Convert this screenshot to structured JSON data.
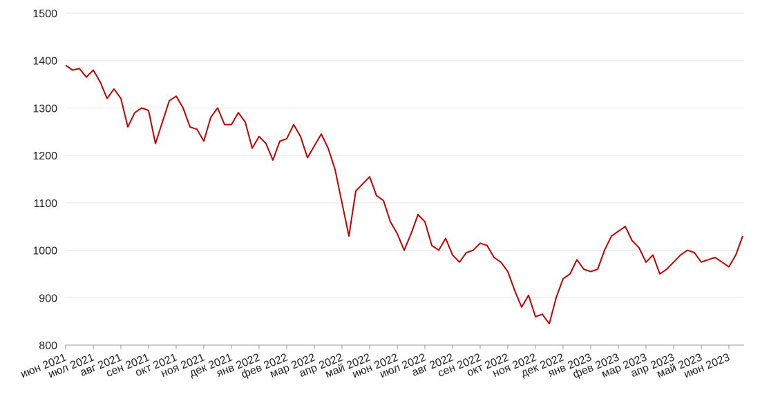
{
  "chart_data": {
    "type": "line",
    "color": "#c00000",
    "grid": true,
    "categories": [
      "июн 2021",
      null,
      null,
      null,
      "июл 2021",
      null,
      null,
      null,
      "авг 2021",
      null,
      null,
      null,
      "сен 2021",
      null,
      null,
      null,
      "окт 2021",
      null,
      null,
      null,
      "ноя 2021",
      null,
      null,
      null,
      "дек 2021",
      null,
      null,
      null,
      "янв 2022",
      null,
      null,
      null,
      "фев 2022",
      null,
      null,
      null,
      "мар 2022",
      null,
      null,
      null,
      "апр 2022",
      null,
      null,
      null,
      "май 2022",
      null,
      null,
      null,
      "июн 2022",
      null,
      null,
      null,
      "июл 2022",
      null,
      null,
      null,
      "авг 2022",
      null,
      null,
      null,
      "сен 2022",
      null,
      null,
      null,
      "окт 2022",
      null,
      null,
      null,
      "ноя 2022",
      null,
      null,
      null,
      "дек 2022",
      null,
      null,
      null,
      "янв 2023",
      null,
      null,
      null,
      "фев 2023",
      null,
      null,
      null,
      "мар 2023",
      null,
      null,
      null,
      "апр 2023",
      null,
      null,
      null,
      "май 2023",
      null,
      null,
      null,
      "июн 2023",
      null,
      null
    ],
    "values": [
      1390,
      1380,
      1383,
      1365,
      1380,
      1355,
      1320,
      1340,
      1320,
      1260,
      1290,
      1300,
      1295,
      1225,
      1270,
      1315,
      1325,
      1300,
      1260,
      1255,
      1230,
      1280,
      1300,
      1265,
      1265,
      1290,
      1270,
      1215,
      1240,
      1225,
      1190,
      1230,
      1235,
      1265,
      1240,
      1195,
      1220,
      1245,
      1215,
      1170,
      1100,
      1030,
      1125,
      1140,
      1155,
      1115,
      1105,
      1060,
      1035,
      1000,
      1035,
      1075,
      1060,
      1010,
      1000,
      1025,
      990,
      975,
      995,
      1000,
      1015,
      1010,
      985,
      975,
      955,
      915,
      880,
      905,
      860,
      865,
      845,
      900,
      940,
      950,
      980,
      960,
      955,
      960,
      1000,
      1030,
      1040,
      1050,
      1020,
      1005,
      975,
      990,
      950,
      960,
      975,
      990,
      1000,
      995,
      975,
      980,
      985,
      975,
      965,
      990,
      1030
    ],
    "ylim": [
      800,
      1500
    ],
    "yticks": [
      800,
      900,
      1000,
      1100,
      1200,
      1300,
      1400,
      1500
    ]
  }
}
